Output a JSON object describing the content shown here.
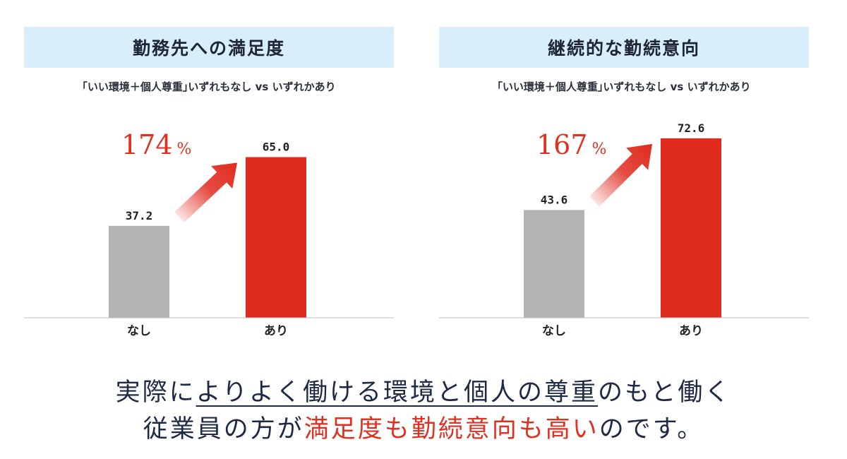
{
  "chart_data": [
    {
      "type": "bar",
      "title": "勤務先への満足度",
      "subtitle": "｢いい環境＋個人尊重｣いずれもなし vs いずれかあり",
      "categories": [
        "なし",
        "あり"
      ],
      "values": [
        37.2,
        65.0
      ],
      "value_labels": [
        "37.2",
        "65.0"
      ],
      "ylim": [
        0,
        80
      ],
      "grid": false,
      "annotation": {
        "number": "174",
        "unit": "%"
      },
      "colors": [
        "#b3b3b3",
        "#e02b1f"
      ]
    },
    {
      "type": "bar",
      "title": "継続的な勤続意向",
      "subtitle": "｢いい環境＋個人尊重｣いずれもなし vs いずれかあり",
      "categories": [
        "なし",
        "あり"
      ],
      "values": [
        43.6,
        72.6
      ],
      "value_labels": [
        "43.6",
        "72.6"
      ],
      "ylim": [
        0,
        80
      ],
      "grid": false,
      "annotation": {
        "number": "167",
        "unit": "%"
      },
      "colors": [
        "#b3b3b3",
        "#e02b1f"
      ]
    }
  ],
  "footer": {
    "line1_a": "実際に",
    "line1_b": "よりよく働ける環境と個人の尊重",
    "line1_c": "のもと働く",
    "line2_a": "従業員の方が",
    "line2_b": "満足度も勤続意向も高い",
    "line2_c": "のです。"
  }
}
